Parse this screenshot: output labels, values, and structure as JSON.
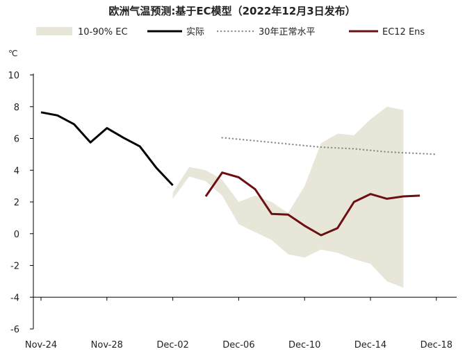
{
  "chart_data": {
    "type": "line",
    "title": "欧洲气温预测:基于EC模型（2022年12月3日发布）",
    "ylabel": "℃",
    "ylim": [
      -6,
      10
    ],
    "yticks": [
      10,
      8,
      6,
      4,
      2,
      0,
      -2,
      -4,
      -6
    ],
    "x_tick_labels": [
      "Nov-24",
      "Nov-28",
      "Dec-02",
      "Dec-06",
      "Dec-10",
      "Dec-14",
      "Dec-18"
    ],
    "x_tick_days": [
      0,
      4,
      8,
      12,
      16,
      20,
      24
    ],
    "grid": false,
    "legend_position": "top",
    "colors": {
      "band": "#e8e5d9",
      "actual": "#000000",
      "normal": "#8c8c8c",
      "ens": "#6b0f12"
    },
    "series": [
      {
        "name": "10-90% EC",
        "type": "band",
        "x": [
          8,
          9,
          10,
          11,
          12,
          13,
          14,
          15,
          16,
          17,
          18,
          19,
          20,
          21,
          22,
          23,
          24
        ],
        "lower": [
          2.2,
          3.6,
          3.3,
          2.4,
          0.6,
          0.1,
          -0.4,
          -1.3,
          -1.5,
          -1.0,
          -1.2,
          -1.6,
          -1.9,
          -3.0,
          -3.4,
          null,
          null
        ],
        "upper": [
          2.6,
          4.2,
          4.0,
          3.4,
          2.0,
          2.4,
          2.0,
          1.3,
          3.0,
          5.7,
          6.3,
          6.2,
          7.2,
          8.0,
          7.8,
          null,
          null
        ]
      },
      {
        "name": "实际",
        "type": "line",
        "x": [
          0,
          1,
          2,
          3,
          4,
          5,
          6,
          7,
          8
        ],
        "y": [
          7.65,
          7.45,
          6.9,
          5.75,
          6.65,
          6.05,
          5.5,
          4.15,
          3.05
        ]
      },
      {
        "name": "30年正常水平",
        "type": "dotted",
        "x": [
          11,
          12,
          13,
          14,
          15,
          16,
          17,
          18,
          19,
          20,
          21,
          22,
          23,
          24
        ],
        "y": [
          6.05,
          5.95,
          5.85,
          5.75,
          5.65,
          5.55,
          5.45,
          5.4,
          5.35,
          5.25,
          5.15,
          5.1,
          5.05,
          5.0
        ]
      },
      {
        "name": "EC12 Ens",
        "type": "line",
        "x": [
          10,
          11,
          12,
          13,
          14,
          15,
          16,
          17,
          18,
          19,
          20,
          21,
          22,
          23
        ],
        "y": [
          2.35,
          3.85,
          3.55,
          2.8,
          1.25,
          1.2,
          0.5,
          -0.1,
          0.35,
          2.0,
          2.5,
          2.2,
          2.35,
          2.4
        ]
      }
    ]
  }
}
